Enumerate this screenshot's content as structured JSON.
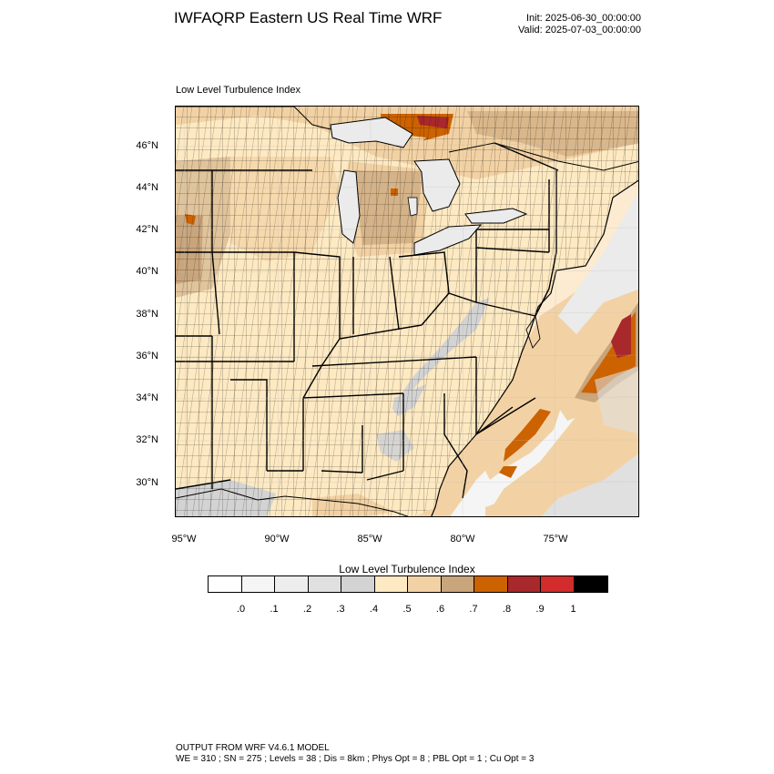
{
  "header": {
    "title": "IWFAQRP Eastern US Real Time WRF",
    "init": "Init: 2025-06-30_00:00:00",
    "valid": "Valid: 2025-07-03_00:00:00"
  },
  "panel": {
    "label": "Low Level Turbulence Index"
  },
  "map": {
    "lat_ticks": [
      "46°N",
      "44°N",
      "42°N",
      "40°N",
      "38°N",
      "36°N",
      "34°N",
      "32°N",
      "30°N"
    ],
    "lon_ticks": [
      "95°W",
      "90°W",
      "85°W",
      "80°W",
      "75°W"
    ],
    "land_color": "#fde9c2",
    "water_color": "#ebebeb",
    "border_color": "#000000"
  },
  "colorbar": {
    "title": "Low Level Turbulence Index",
    "colors": [
      "#ffffff",
      "#f5f5f5",
      "#ededed",
      "#e0e0e0",
      "#d3d3d3",
      "#fde9c2",
      "#f2d2a4",
      "#c9a57c",
      "#cc6200",
      "#a8282c",
      "#d22c2c",
      "#000000"
    ],
    "labels": [
      ".0",
      ".1",
      ".2",
      ".3",
      ".4",
      ".5",
      ".6",
      ".7",
      ".8",
      ".9",
      "1"
    ]
  },
  "footer": {
    "line1": "OUTPUT FROM WRF V4.6.1 MODEL",
    "line2": "WE = 310 ; SN = 275 ; Levels = 38 ; Dis = 8km ; Phys Opt = 8 ; PBL Opt = 1 ; Cu Opt = 3"
  }
}
